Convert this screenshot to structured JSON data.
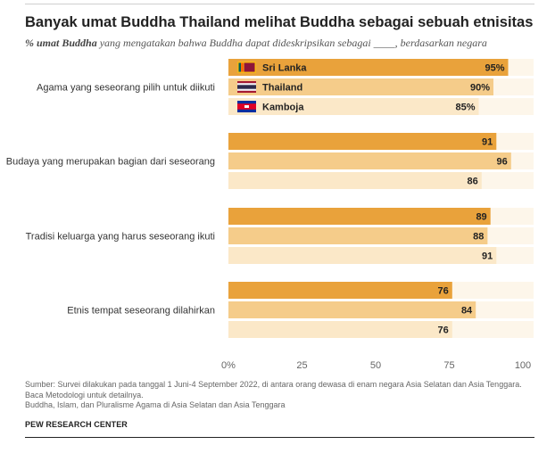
{
  "header": {
    "title": "Banyak umat Buddha Thailand melihat Buddha sebagai sebuah etnisitas",
    "subtitle_bold": "% umat Buddha",
    "subtitle_rest": " yang mengatakan bahwa Buddha dapat dideskripsikan sebagai ____, berdasarkan negara"
  },
  "footer": {
    "source_line1": "Sumber: Survei dilakukan pada tanggal 1 Juni-4 September 2022, di antara orang dewasa di enam negara Asia Selatan dan Asia Tenggara.",
    "source_line2": "Baca Metodologi untuk detailnya.",
    "source_line3": "Buddha, Islam, dan Pluralisme Agama di Asia Selatan dan Asia Tenggara",
    "org": "PEW RESEARCH CENTER"
  },
  "colors": {
    "sri_lanka": "#E9A23B",
    "thailand": "#F5CC8A",
    "kamboja": "#FBE8C8",
    "row_band": "#FDF6EA"
  },
  "chart_data": {
    "type": "bar",
    "orientation": "horizontal",
    "categories": [
      "Agama yang seseorang pilih untuk diikuti",
      "Budaya yang merupakan bagian dari seseorang",
      "Tradisi keluarga yang harus seseorang ikuti",
      "Etnis tempat seseorang dilahirkan"
    ],
    "series": [
      {
        "name": "Sri Lanka",
        "values": [
          95,
          91,
          89,
          76
        ]
      },
      {
        "name": "Thailand",
        "values": [
          90,
          96,
          88,
          84
        ]
      },
      {
        "name": "Kamboja",
        "values": [
          85,
          86,
          91,
          76
        ]
      }
    ],
    "value_labels": [
      [
        "95%",
        "90%",
        "85%"
      ],
      [
        "91",
        "96",
        "86"
      ],
      [
        "89",
        "88",
        "91"
      ],
      [
        "76",
        "84",
        "76"
      ]
    ],
    "xlim": [
      0,
      100
    ],
    "xticks": [
      "0%",
      "25",
      "50",
      "75",
      "100"
    ],
    "legend_placement": "inside-first-group",
    "legend_icons": [
      "sri-lanka-flag-icon",
      "thailand-flag-icon",
      "cambodia-flag-icon"
    ]
  }
}
